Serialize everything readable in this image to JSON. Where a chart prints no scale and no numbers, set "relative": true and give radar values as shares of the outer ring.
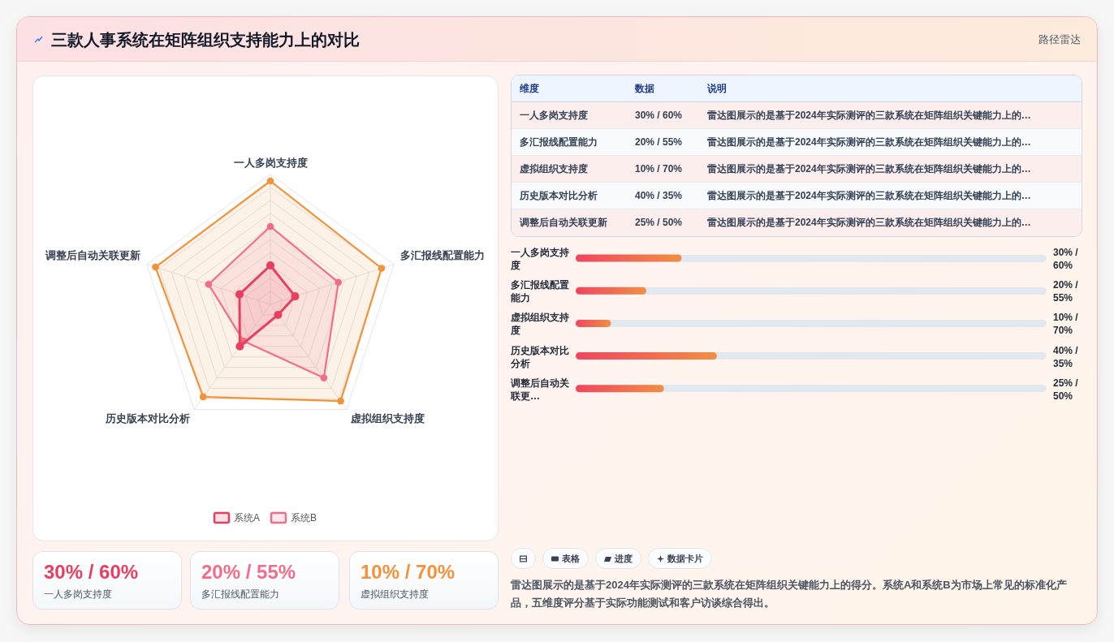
{
  "chart_data": [
    {
      "type": "other",
      "title": "三款人事系统在矩阵组织支持能力上的对比",
      "subtitle": "路径雷达"
    },
    {
      "type": "radar",
      "categories": [
        "一人多岗支持度",
        "多汇报线配置能力",
        "虚拟组织支持度",
        "历史版本对比分析",
        "调整后自动关联更新"
      ],
      "relative": true,
      "grid": true,
      "legend": "bottom",
      "marker": "circle",
      "series": [
        {
          "name": "系统A",
          "color": "#e83e5f",
          "values": [
            0.3,
            0.2,
            0.1,
            0.4,
            0.25
          ]
        },
        {
          "name": "系统B",
          "color": "#f06e89",
          "values": [
            0.6,
            0.55,
            0.7,
            0.35,
            0.5
          ]
        },
        {
          "color": "#f29339",
          "values": [
            0.95,
            0.9,
            0.92,
            0.88,
            0.93
          ]
        }
      ]
    },
    {
      "type": "other",
      "categories": [
        "一人多岗支持度",
        "多汇报线配置能力",
        "虚拟组织支持度",
        "历史版本对比分析",
        "调整后自动关联更新"
      ],
      "value_labels": [
        "30% / 60%",
        "20% / 55%",
        "10% / 70%",
        "40% / 35%",
        "25% / 50%"
      ],
      "annotations": [
        "维度",
        "数据",
        "说明",
        "雷达图展示的是基于2024年实际测评的三款系统在矩阵组织关键能力上的…",
        "雷达图展示的是基于2024年实际测评的三款系统在矩阵组织关键能力上的…",
        "雷达图展示的是基于2024年实际测评的三款系统在矩阵组织关键能力上的…",
        "雷达图展示的是基于2024年实际测评的三款系统在矩阵组织关键能力上的…",
        "雷达图展示的是基于2024年实际测评的三款系统在矩阵组织关键能力上的…"
      ]
    },
    {
      "type": "bar",
      "orientation": "horizontal",
      "categories": [
        "一人多岗支持度",
        "多汇报线配置能力",
        "虚拟组织支持度",
        "历史版本对比分析",
        "调整后自动关联更…"
      ],
      "values": [
        30,
        20,
        10,
        40,
        25
      ],
      "value_labels": [
        "30% / 60%",
        "20% / 55%",
        "10% / 70%",
        "40% / 35%",
        "25% / 50%"
      ],
      "color": "#f0455f"
    },
    {
      "type": "other",
      "categories": [
        "一人多岗支持度",
        "多汇报线配置能力",
        "虚拟组织支持度"
      ],
      "value_labels": [
        "30% / 60%",
        "20% / 55%",
        "10% / 70%"
      ]
    },
    {
      "type": "other",
      "categories": [
        null,
        "表格",
        "进度",
        "数据卡片"
      ],
      "annotations": [
        "雷达图展示的是基于2024年实际测评的三款系统在矩阵组织关键能力上的得分。系统A和系统B为市场上常见的标准化产品，五维度评分基于实际功能测试和客户访谈综合得出。"
      ]
    }
  ]
}
